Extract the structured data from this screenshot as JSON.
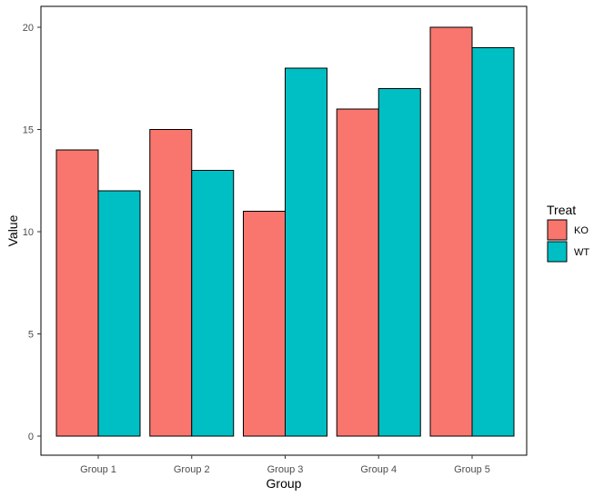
{
  "chart_data": {
    "type": "bar",
    "title": "",
    "xlabel": "Group",
    "ylabel": "Value",
    "categories": [
      "Group 1",
      "Group 2",
      "Group 3",
      "Group 4",
      "Group 5"
    ],
    "series": [
      {
        "name": "KO",
        "color": "#F8766D",
        "values": [
          14,
          15,
          11,
          16,
          20
        ]
      },
      {
        "name": "WT",
        "color": "#00BFC4",
        "values": [
          12,
          13,
          18,
          17,
          19
        ]
      }
    ],
    "ylim": [
      0,
      21
    ],
    "yticks": [
      0,
      5,
      10,
      15,
      20
    ],
    "grid": false,
    "legend": {
      "title": "Treat",
      "position": "right"
    }
  }
}
